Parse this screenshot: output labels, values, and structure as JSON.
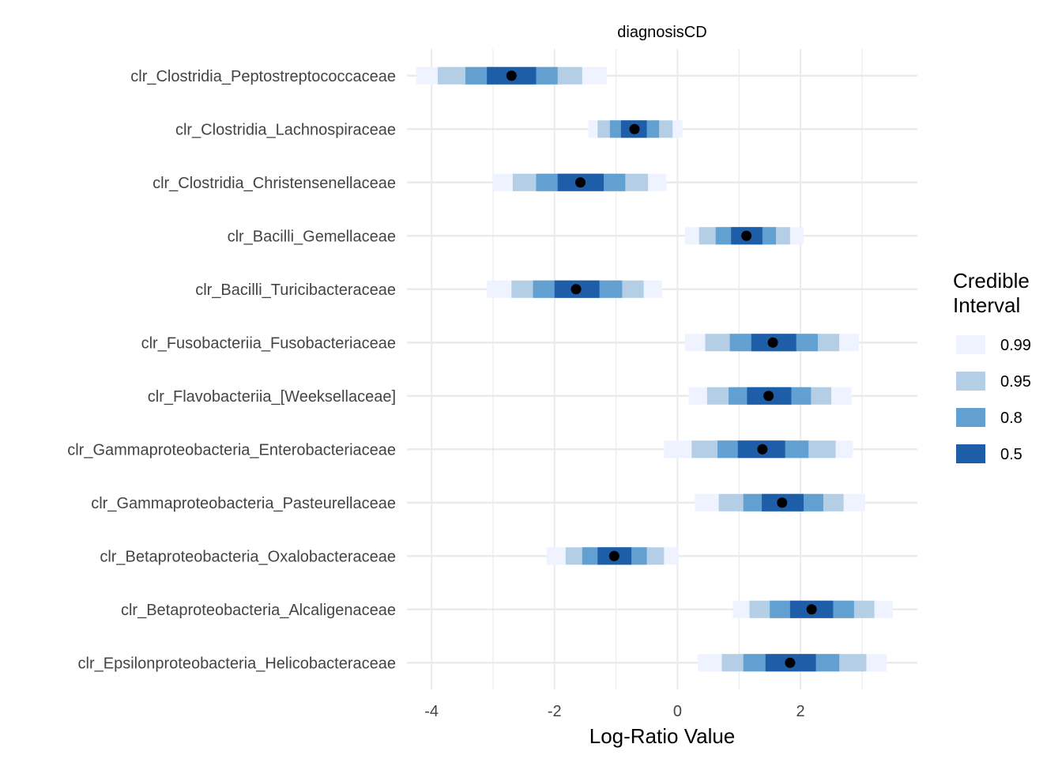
{
  "chart_data": {
    "type": "interval",
    "facet_title": "diagnosisCD",
    "xlabel": "Log-Ratio Value",
    "ylabel": "",
    "xlim": [
      -4.4,
      3.9
    ],
    "x_ticks": [
      -4,
      -2,
      0,
      2
    ],
    "x_tick_labels": [
      "-4",
      "-2",
      "0",
      "2"
    ],
    "grid": true,
    "legend": {
      "title_lines": [
        "Credible",
        "Interval"
      ],
      "placement": "right",
      "items": [
        {
          "label": "0.99",
          "color": "#eff3ff"
        },
        {
          "label": "0.95",
          "color": "#b4cfe5"
        },
        {
          "label": "0.8",
          "color": "#61a0d0"
        },
        {
          "label": "0.5",
          "color": "#1e5ea8"
        }
      ]
    },
    "categories": [
      {
        "name": "clr_Clostridia_Peptostreptococcaceae",
        "median": -2.7,
        "ci99": [
          -4.25,
          -1.15
        ],
        "ci95": [
          -3.9,
          -1.55
        ],
        "ci80": [
          -3.45,
          -1.95
        ],
        "ci50": [
          -3.1,
          -2.3
        ]
      },
      {
        "name": "clr_Clostridia_Lachnospiraceae",
        "median": -0.7,
        "ci99": [
          -1.45,
          0.08
        ],
        "ci95": [
          -1.3,
          -0.08
        ],
        "ci80": [
          -1.1,
          -0.3
        ],
        "ci50": [
          -0.92,
          -0.5
        ]
      },
      {
        "name": "clr_Clostridia_Christensenellaceae",
        "median": -1.58,
        "ci99": [
          -3.0,
          -0.18
        ],
        "ci95": [
          -2.68,
          -0.48
        ],
        "ci80": [
          -2.3,
          -0.85
        ],
        "ci50": [
          -1.95,
          -1.2
        ]
      },
      {
        "name": "clr_Bacilli_Gemellaceae",
        "median": 1.12,
        "ci99": [
          0.12,
          2.05
        ],
        "ci95": [
          0.35,
          1.83
        ],
        "ci80": [
          0.62,
          1.6
        ],
        "ci50": [
          0.87,
          1.38
        ]
      },
      {
        "name": "clr_Bacilli_Turicibacteraceae",
        "median": -1.65,
        "ci99": [
          -3.1,
          -0.25
        ],
        "ci95": [
          -2.7,
          -0.55
        ],
        "ci80": [
          -2.35,
          -0.9
        ],
        "ci50": [
          -2.0,
          -1.27
        ]
      },
      {
        "name": "clr_Fusobacteriia_Fusobacteriaceae",
        "median": 1.55,
        "ci99": [
          0.12,
          2.95
        ],
        "ci95": [
          0.45,
          2.63
        ],
        "ci80": [
          0.85,
          2.28
        ],
        "ci50": [
          1.2,
          1.93
        ]
      },
      {
        "name": "clr_Flavobacteriia_[Weeksellaceae]",
        "median": 1.48,
        "ci99": [
          0.18,
          2.83
        ],
        "ci95": [
          0.48,
          2.5
        ],
        "ci80": [
          0.83,
          2.17
        ],
        "ci50": [
          1.13,
          1.85
        ]
      },
      {
        "name": "clr_Gammaproteobacteria_Enterobacteriaceae",
        "median": 1.38,
        "ci99": [
          -0.22,
          2.85
        ],
        "ci95": [
          0.23,
          2.57
        ],
        "ci80": [
          0.65,
          2.13
        ],
        "ci50": [
          0.98,
          1.75
        ]
      },
      {
        "name": "clr_Gammaproteobacteria_Pasteurellaceae",
        "median": 1.7,
        "ci99": [
          0.28,
          3.05
        ],
        "ci95": [
          0.67,
          2.7
        ],
        "ci80": [
          1.07,
          2.37
        ],
        "ci50": [
          1.37,
          2.05
        ]
      },
      {
        "name": "clr_Betaproteobacteria_Oxalobacteraceae",
        "median": -1.03,
        "ci99": [
          -2.13,
          0.02
        ],
        "ci95": [
          -1.82,
          -0.22
        ],
        "ci80": [
          -1.55,
          -0.5
        ],
        "ci50": [
          -1.3,
          -0.75
        ]
      },
      {
        "name": "clr_Betaproteobacteria_Alcaligenaceae",
        "median": 2.18,
        "ci99": [
          0.9,
          3.5
        ],
        "ci95": [
          1.17,
          3.2
        ],
        "ci80": [
          1.5,
          2.87
        ],
        "ci50": [
          1.83,
          2.53
        ]
      },
      {
        "name": "clr_Epsilonproteobacteria_Helicobacteraceae",
        "median": 1.83,
        "ci99": [
          0.33,
          3.4
        ],
        "ci95": [
          0.72,
          3.07
        ],
        "ci80": [
          1.07,
          2.63
        ],
        "ci50": [
          1.43,
          2.25
        ]
      }
    ]
  }
}
